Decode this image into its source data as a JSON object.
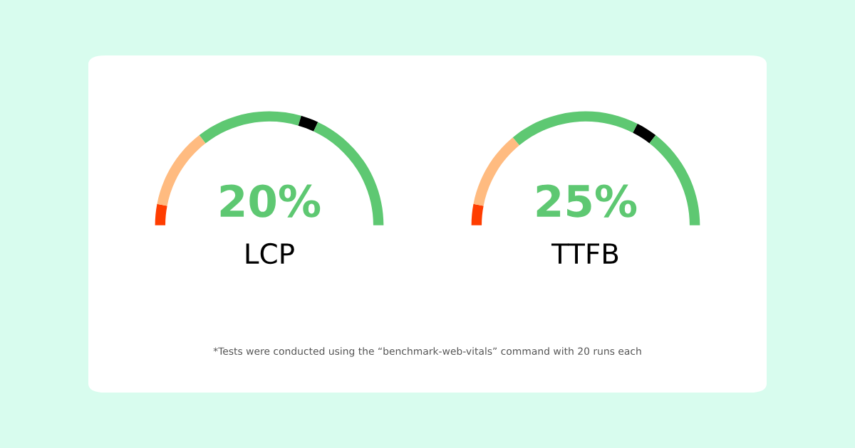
{
  "chart_data": [
    {
      "type": "donut",
      "title": "LCP",
      "categories": [
        null,
        null,
        null,
        null,
        null
      ],
      "values": [
        6,
        23,
        30,
        5,
        36
      ],
      "colors": [
        "#ff3d00",
        "#ffbb80",
        "#5ec872",
        "#000000",
        "#5ec872"
      ],
      "annotations": [
        "20%",
        "*Tests were conducted using the “benchmark-web-vitals” command with 20 runs each"
      ]
    },
    {
      "type": "donut",
      "title": "TTFB",
      "categories": [
        null,
        null,
        null,
        null,
        null
      ],
      "values": [
        6,
        22,
        37,
        6,
        29
      ],
      "colors": [
        "#ff3d00",
        "#ffbb80",
        "#5ec872",
        "#000000",
        "#5ec872"
      ],
      "annotations": [
        "25%"
      ]
    }
  ]
}
